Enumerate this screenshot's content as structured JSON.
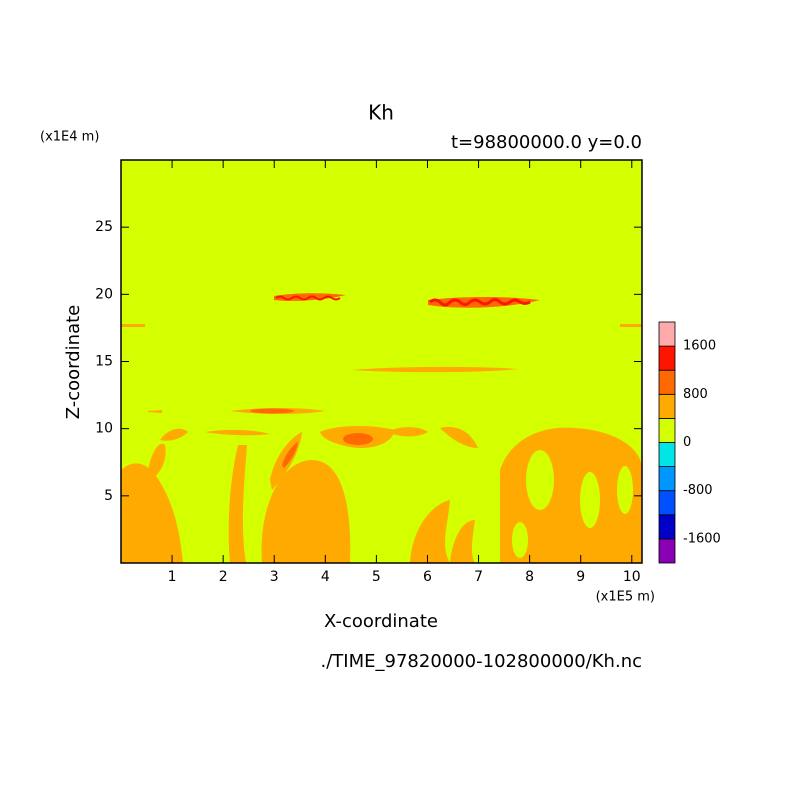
{
  "chart_data": {
    "type": "contour",
    "title": "Kh",
    "subtitle": "t=98800000.0 y=0.0",
    "x_label": "X-coordinate",
    "y_label": "Z-coordinate",
    "x_units": "(x1E5 m)",
    "y_units": "(x1E4 m)",
    "source": "./TIME_97820000-102800000/Kh.nc",
    "xlim": [
      0,
      10.2
    ],
    "xticks": [
      1,
      2,
      3,
      4,
      5,
      6,
      7,
      8,
      9,
      10
    ],
    "ylim": [
      0,
      30
    ],
    "yticks": [
      5,
      10,
      15,
      20,
      25
    ],
    "colorbar": {
      "levels": [
        -1600,
        -1200,
        -800,
        -400,
        0,
        400,
        800,
        1200,
        1600
      ],
      "colors": [
        "#8a00b4",
        "#0000c8",
        "#0050ff",
        "#0096ff",
        "#00e6e6",
        "#d4ff00",
        "#ffaa00",
        "#ff6a00",
        "#ff1400",
        "#ffaaaa"
      ],
      "ticks": [
        -1600,
        -800,
        0,
        800,
        1600
      ]
    }
  }
}
